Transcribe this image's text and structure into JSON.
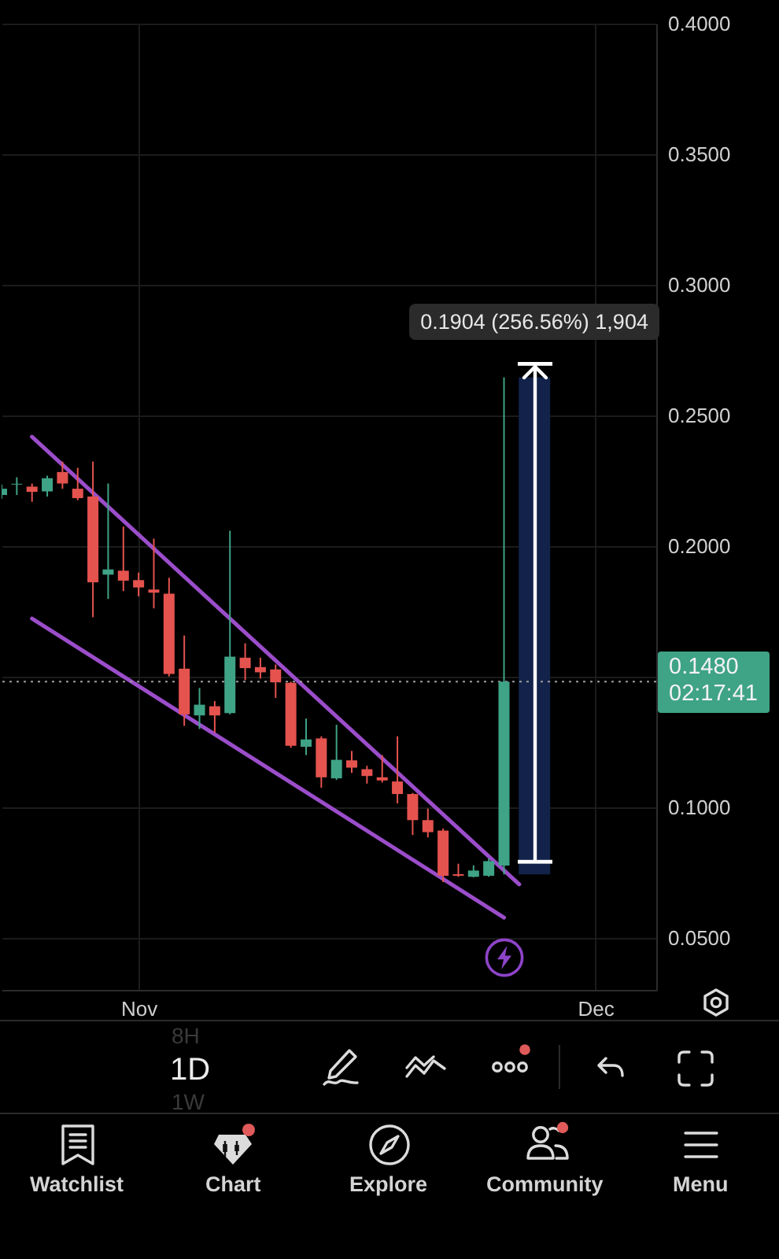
{
  "chart_data": {
    "type": "candlestick",
    "x": [
      "--10-23",
      "--10-24",
      "--10-25",
      "--10-26",
      "--10-27",
      "--10-28",
      "--10-29",
      "--10-30",
      "--10-31",
      "--11-01",
      "--11-02",
      "--11-03",
      "--11-04",
      "--11-05",
      "--11-06",
      "--11-07",
      "--11-08",
      "--11-09",
      "--11-10",
      "--11-11",
      "--11-12",
      "--11-13",
      "--11-14",
      "--11-15",
      "--11-16",
      "--11-17",
      "--11-18",
      "--11-19",
      "--11-20",
      "--11-21",
      "--11-22",
      "--11-23",
      "--11-24",
      "--11-25"
    ],
    "ohlc": [
      [
        0.2195,
        0.2235,
        0.218,
        0.2219
      ],
      [
        0.2235,
        0.2263,
        0.2195,
        0.2238
      ],
      [
        0.2227,
        0.2239,
        0.2169,
        0.2207
      ],
      [
        0.2209,
        0.2269,
        0.2189,
        0.2259
      ],
      [
        0.2283,
        0.2323,
        0.2219,
        0.2239
      ],
      [
        0.2219,
        0.2299,
        0.2175,
        0.2183
      ],
      [
        0.2189,
        0.2323,
        0.1727,
        0.1861
      ],
      [
        0.189,
        0.2239,
        0.1797,
        0.191
      ],
      [
        0.1905,
        0.2074,
        0.1827,
        0.1867
      ],
      [
        0.1869,
        0.1898,
        0.1807,
        0.1841
      ],
      [
        0.1833,
        0.2028,
        0.1761,
        0.1821
      ],
      [
        0.1817,
        0.1878,
        0.15,
        0.151
      ],
      [
        0.153,
        0.1657,
        0.1311,
        0.1355
      ],
      [
        0.1351,
        0.1456,
        0.1299,
        0.1392
      ],
      [
        0.1386,
        0.1406,
        0.1285,
        0.1351
      ],
      [
        0.136,
        0.2058,
        0.1355,
        0.1576
      ],
      [
        0.1572,
        0.1627,
        0.1486,
        0.1532
      ],
      [
        0.1536,
        0.1572,
        0.1492,
        0.1516
      ],
      [
        0.1527,
        0.1546,
        0.1418,
        0.1478
      ],
      [
        0.1476,
        0.148,
        0.1227,
        0.1235
      ],
      [
        0.1231,
        0.1339,
        0.1199,
        0.1259
      ],
      [
        0.1263,
        0.1271,
        0.1074,
        0.1114
      ],
      [
        0.111,
        0.1315,
        0.1104,
        0.1181
      ],
      [
        0.1179,
        0.1215,
        0.1131,
        0.1151
      ],
      [
        0.1145,
        0.1158,
        0.109,
        0.1119
      ],
      [
        0.1114,
        0.1199,
        0.1094,
        0.1102
      ],
      [
        0.1098,
        0.1271,
        0.1014,
        0.105
      ],
      [
        0.105,
        0.1054,
        0.0893,
        0.095
      ],
      [
        0.095,
        0.0994,
        0.0884,
        0.0904
      ],
      [
        0.091,
        0.0918,
        0.0713,
        0.0737
      ],
      [
        0.0743,
        0.0783,
        0.0733,
        0.0737
      ],
      [
        0.0733,
        0.0777,
        0.0731,
        0.0757
      ],
      [
        0.0737,
        0.0803,
        0.0733,
        0.0793
      ],
      [
        0.0776,
        0.2646,
        0.0742,
        0.148
      ]
    ],
    "colors": [
      "#3fa386",
      "#3fa386",
      "#e5534f",
      "#3fa386",
      "#e5534f",
      "#e5534f",
      "#e5534f",
      "#3fa386",
      "#e5534f",
      "#e5534f",
      "#e5534f",
      "#e5534f",
      "#e5534f",
      "#3fa386",
      "#e5534f",
      "#3fa386",
      "#e5534f",
      "#e5534f",
      "#e5534f",
      "#e5534f",
      "#3fa386",
      "#e5534f",
      "#3fa386",
      "#e5534f",
      "#e5534f",
      "#e5534f",
      "#e5534f",
      "#e5534f",
      "#e5534f",
      "#e5534f",
      "#e5534f",
      "#3fa386",
      "#3fa386",
      "#3fa386"
    ],
    "series": [
      {
        "type": "bar",
        "color": "#12224a",
        "x": [
          "--11-27"
        ],
        "base": [
          0.0742
        ],
        "values": [
          0.1904
        ]
      },
      {
        "type": "line",
        "color": "#9b4dca",
        "x": [
          "--10-25",
          "--11-26"
        ],
        "values": [
          0.2418,
          0.0704
        ]
      },
      {
        "type": "line",
        "color": "#9b4dca",
        "x": [
          "--10-25",
          "--11-25"
        ],
        "values": [
          0.1722,
          0.0577
        ]
      }
    ],
    "xlim": [
      "--10-23",
      "--12-05"
    ],
    "xticks": [
      {
        "value": "--11-01",
        "label": "Nov"
      },
      {
        "value": "--12-01",
        "label": "Dec"
      }
    ],
    "ylim": [
      0.03,
      0.4
    ],
    "yticks": [
      {
        "value": 0.05,
        "label": "0.0500"
      },
      {
        "value": 0.1,
        "label": "0.1000"
      },
      {
        "value": 0.15,
        "label": null
      },
      {
        "value": 0.2,
        "label": "0.2000"
      },
      {
        "value": 0.25,
        "label": "0.2500"
      },
      {
        "value": 0.3,
        "label": "0.3000"
      },
      {
        "value": 0.35,
        "label": "0.3500"
      },
      {
        "value": 0.4,
        "label": "0.4000"
      }
    ],
    "grid": true,
    "ref_lines": [
      {
        "axis": "y",
        "value": 0.148,
        "label": "0.1480",
        "color": "#9e9e9e",
        "line_style": "dotted"
      }
    ],
    "annotations": [
      {
        "text": "0.1904 (256.56%) 1,904",
        "x": "--11-27",
        "y": 0.2646
      },
      "02:17:41",
      "1D",
      "8H",
      "1W",
      "Watchlist",
      "Chart",
      "Explore",
      "Community",
      "Menu"
    ]
  }
}
